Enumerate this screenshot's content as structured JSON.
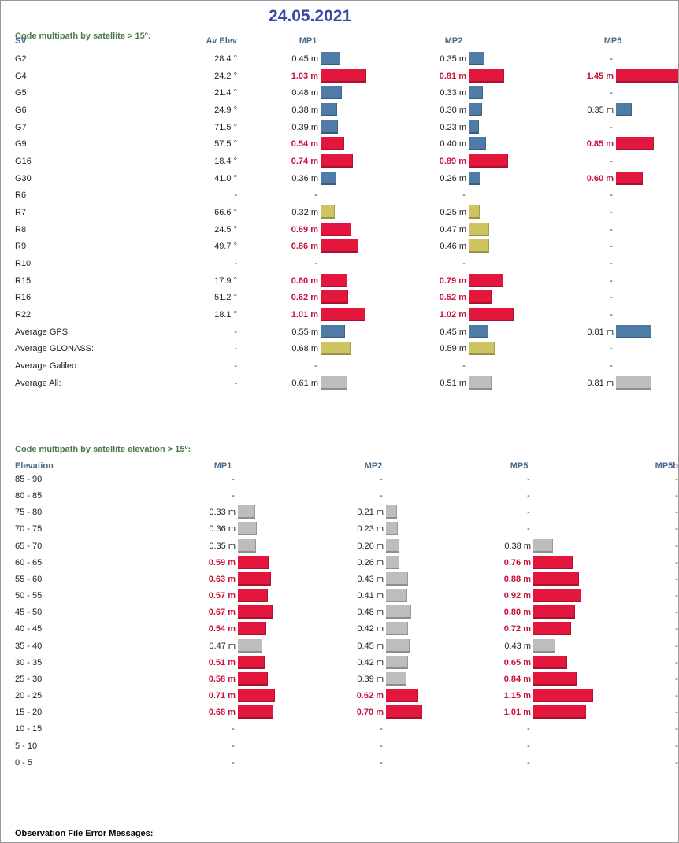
{
  "title": "24.05.2021",
  "sections": [
    {
      "title": "Code multipath by satellite > 15º:",
      "columns": [
        "SV",
        "Av Elev",
        "MP1",
        "MP2",
        "MP5"
      ],
      "rows": [
        {
          "label": "G2",
          "color": "#4f7ca6",
          "cells": [
            "28.4 °",
            {
              "value": 0.45,
              "label": "0.45 m"
            },
            {
              "value": 0.35,
              "label": "0.35 m"
            },
            "-"
          ]
        },
        {
          "label": "G4",
          "color": "#4f7ca6",
          "cells": [
            "24.2 °",
            {
              "value": 1.03,
              "label": "1.03 m",
              "color": "#e3173e"
            },
            {
              "value": 0.81,
              "label": "0.81 m",
              "color": "#e3173e"
            },
            {
              "value": 1.45,
              "label": "1.45 m",
              "color": "#e3173e"
            }
          ]
        },
        {
          "label": "G5",
          "color": "#4f7ca6",
          "cells": [
            "21.4 °",
            {
              "value": 0.48,
              "label": "0.48 m"
            },
            {
              "value": 0.33,
              "label": "0.33 m"
            },
            "-"
          ]
        },
        {
          "label": "G6",
          "color": "#4f7ca6",
          "cells": [
            "24.9 °",
            {
              "value": 0.38,
              "label": "0.38 m"
            },
            {
              "value": 0.3,
              "label": "0.30 m"
            },
            {
              "value": 0.35,
              "label": "0.35 m"
            }
          ]
        },
        {
          "label": "G7",
          "color": "#4f7ca6",
          "cells": [
            "71.5 °",
            {
              "value": 0.39,
              "label": "0.39 m"
            },
            {
              "value": 0.23,
              "label": "0.23 m"
            },
            "-"
          ]
        },
        {
          "label": "G9",
          "color": "#4f7ca6",
          "cells": [
            "57.5 °",
            {
              "value": 0.54,
              "label": "0.54 m",
              "color": "#e3173e"
            },
            {
              "value": 0.4,
              "label": "0.40 m"
            },
            {
              "value": 0.85,
              "label": "0.85 m",
              "color": "#e3173e"
            }
          ]
        },
        {
          "label": "G16",
          "color": "#4f7ca6",
          "cells": [
            "18.4 °",
            {
              "value": 0.74,
              "label": "0.74 m",
              "color": "#e3173e"
            },
            {
              "value": 0.89,
              "label": "0.89 m",
              "color": "#e3173e"
            },
            "-"
          ]
        },
        {
          "label": "G30",
          "color": "#4f7ca6",
          "cells": [
            "41.0 °",
            {
              "value": 0.36,
              "label": "0.36 m"
            },
            {
              "value": 0.26,
              "label": "0.26 m"
            },
            {
              "value": 0.6,
              "label": "0.60 m",
              "color": "#e3173e"
            }
          ]
        },
        {
          "label": "R6",
          "color": "#cfc462",
          "cells": [
            "-",
            "-",
            "-",
            "-"
          ]
        },
        {
          "label": "R7",
          "color": "#cfc462",
          "cells": [
            "66.6 °",
            {
              "value": 0.32,
              "label": "0.32 m"
            },
            {
              "value": 0.25,
              "label": "0.25 m"
            },
            "-"
          ]
        },
        {
          "label": "R8",
          "color": "#cfc462",
          "cells": [
            "24.5 °",
            {
              "value": 0.69,
              "label": "0.69 m",
              "color": "#e3173e"
            },
            {
              "value": 0.47,
              "label": "0.47 m"
            },
            "-"
          ]
        },
        {
          "label": "R9",
          "color": "#cfc462",
          "cells": [
            "49.7 °",
            {
              "value": 0.86,
              "label": "0.86 m",
              "color": "#e3173e"
            },
            {
              "value": 0.46,
              "label": "0.46 m"
            },
            "-"
          ]
        },
        {
          "label": "R10",
          "color": "#cfc462",
          "cells": [
            "-",
            "-",
            "-",
            "-"
          ]
        },
        {
          "label": "R15",
          "color": "#cfc462",
          "cells": [
            "17.9 °",
            {
              "value": 0.6,
              "label": "0.60 m",
              "color": "#e3173e"
            },
            {
              "value": 0.79,
              "label": "0.79 m",
              "color": "#e3173e"
            },
            "-"
          ]
        },
        {
          "label": "R16",
          "color": "#cfc462",
          "cells": [
            "51.2 °",
            {
              "value": 0.62,
              "label": "0.62 m",
              "color": "#e3173e"
            },
            {
              "value": 0.52,
              "label": "0.52 m",
              "color": "#e3173e"
            },
            "-"
          ]
        },
        {
          "label": "R22",
          "color": "#cfc462",
          "cells": [
            "18.1 °",
            {
              "value": 1.01,
              "label": "1.01 m",
              "color": "#e3173e"
            },
            {
              "value": 1.02,
              "label": "1.02 m",
              "color": "#e3173e"
            },
            "-"
          ]
        },
        {
          "label": "Average GPS:",
          "color": "#4f7ca6",
          "cells": [
            "-",
            {
              "value": 0.55,
              "label": "0.55 m"
            },
            {
              "value": 0.45,
              "label": "0.45 m"
            },
            {
              "value": 0.81,
              "label": "0.81 m"
            }
          ]
        },
        {
          "label": "Average GLONASS:",
          "color": "#cfc462",
          "cells": [
            "-",
            {
              "value": 0.68,
              "label": "0.68 m"
            },
            {
              "value": 0.59,
              "label": "0.59 m"
            },
            "-"
          ]
        },
        {
          "label": "Average Galileo:",
          "color": "#bdbdbd",
          "cells": [
            "-",
            "-",
            "-",
            "-"
          ]
        },
        {
          "label": "Average All:",
          "color": "#bdbdbd",
          "cells": [
            "-",
            {
              "value": 0.61,
              "label": "0.61 m"
            },
            {
              "value": 0.51,
              "label": "0.51 m"
            },
            {
              "value": 0.81,
              "label": "0.81 m"
            }
          ]
        }
      ]
    },
    {
      "title": "Code multipath by satellite elevation > 15º:",
      "columns": [
        "Elevation",
        "MP1",
        "MP2",
        "MP5",
        "MP5b"
      ],
      "color": "#bdbdbd",
      "rows": [
        {
          "label": "85 - 90",
          "cells": [
            "-",
            "-",
            "-",
            "-"
          ]
        },
        {
          "label": "80 - 85",
          "cells": [
            "-",
            "-",
            "-",
            "-"
          ]
        },
        {
          "label": "75 - 80",
          "cells": [
            {
              "value": 0.33,
              "label": "0.33 m"
            },
            {
              "value": 0.21,
              "label": "0.21 m"
            },
            "-",
            "-"
          ]
        },
        {
          "label": "70 - 75",
          "cells": [
            {
              "value": 0.36,
              "label": "0.36 m"
            },
            {
              "value": 0.23,
              "label": "0.23 m"
            },
            "-",
            "-"
          ]
        },
        {
          "label": "65 - 70",
          "cells": [
            {
              "value": 0.35,
              "label": "0.35 m"
            },
            {
              "value": 0.26,
              "label": "0.26 m"
            },
            {
              "value": 0.38,
              "label": "0.38 m"
            },
            "-"
          ]
        },
        {
          "label": "60 - 65",
          "cells": [
            {
              "value": 0.59,
              "label": "0.59 m",
              "color": "#e3173e"
            },
            {
              "value": 0.26,
              "label": "0.26 m"
            },
            {
              "value": 0.76,
              "label": "0.76 m",
              "color": "#e3173e"
            },
            "-"
          ]
        },
        {
          "label": "55 - 60",
          "cells": [
            {
              "value": 0.63,
              "label": "0.63 m",
              "color": "#e3173e"
            },
            {
              "value": 0.43,
              "label": "0.43 m"
            },
            {
              "value": 0.88,
              "label": "0.88 m",
              "color": "#e3173e"
            },
            "-"
          ]
        },
        {
          "label": "50 - 55",
          "cells": [
            {
              "value": 0.57,
              "label": "0.57 m",
              "color": "#e3173e"
            },
            {
              "value": 0.41,
              "label": "0.41 m"
            },
            {
              "value": 0.92,
              "label": "0.92 m",
              "color": "#e3173e"
            },
            "-"
          ]
        },
        {
          "label": "45 - 50",
          "cells": [
            {
              "value": 0.67,
              "label": "0.67 m",
              "color": "#e3173e"
            },
            {
              "value": 0.48,
              "label": "0.48 m"
            },
            {
              "value": 0.8,
              "label": "0.80 m",
              "color": "#e3173e"
            },
            "-"
          ]
        },
        {
          "label": "40 - 45",
          "cells": [
            {
              "value": 0.54,
              "label": "0.54 m",
              "color": "#e3173e"
            },
            {
              "value": 0.42,
              "label": "0.42 m"
            },
            {
              "value": 0.72,
              "label": "0.72 m",
              "color": "#e3173e"
            },
            "-"
          ]
        },
        {
          "label": "35 - 40",
          "cells": [
            {
              "value": 0.47,
              "label": "0.47 m"
            },
            {
              "value": 0.45,
              "label": "0.45 m"
            },
            {
              "value": 0.43,
              "label": "0.43 m"
            },
            "-"
          ]
        },
        {
          "label": "30 - 35",
          "cells": [
            {
              "value": 0.51,
              "label": "0.51 m",
              "color": "#e3173e"
            },
            {
              "value": 0.42,
              "label": "0.42 m"
            },
            {
              "value": 0.65,
              "label": "0.65 m",
              "color": "#e3173e"
            },
            "-"
          ]
        },
        {
          "label": "25 - 30",
          "cells": [
            {
              "value": 0.58,
              "label": "0.58 m",
              "color": "#e3173e"
            },
            {
              "value": 0.39,
              "label": "0.39 m"
            },
            {
              "value": 0.84,
              "label": "0.84 m",
              "color": "#e3173e"
            },
            "-"
          ]
        },
        {
          "label": "20 - 25",
          "cells": [
            {
              "value": 0.71,
              "label": "0.71 m",
              "color": "#e3173e"
            },
            {
              "value": 0.62,
              "label": "0.62 m",
              "color": "#e3173e"
            },
            {
              "value": 1.15,
              "label": "1.15 m",
              "color": "#e3173e"
            },
            "-"
          ]
        },
        {
          "label": "15 - 20",
          "cells": [
            {
              "value": 0.68,
              "label": "0.68 m",
              "color": "#e3173e"
            },
            {
              "value": 0.7,
              "label": "0.70 m",
              "color": "#e3173e"
            },
            {
              "value": 1.01,
              "label": "1.01 m",
              "color": "#e3173e"
            },
            "-"
          ]
        },
        {
          "label": "10 - 15",
          "cells": [
            "-",
            "-",
            "-",
            "-"
          ]
        },
        {
          "label": "5 - 10",
          "cells": [
            "-",
            "-",
            "-",
            "-"
          ]
        },
        {
          "label": "0 - 5",
          "cells": [
            "-",
            "-",
            "-",
            "-"
          ]
        }
      ]
    }
  ],
  "footer": "Observation File Error Messages:"
}
